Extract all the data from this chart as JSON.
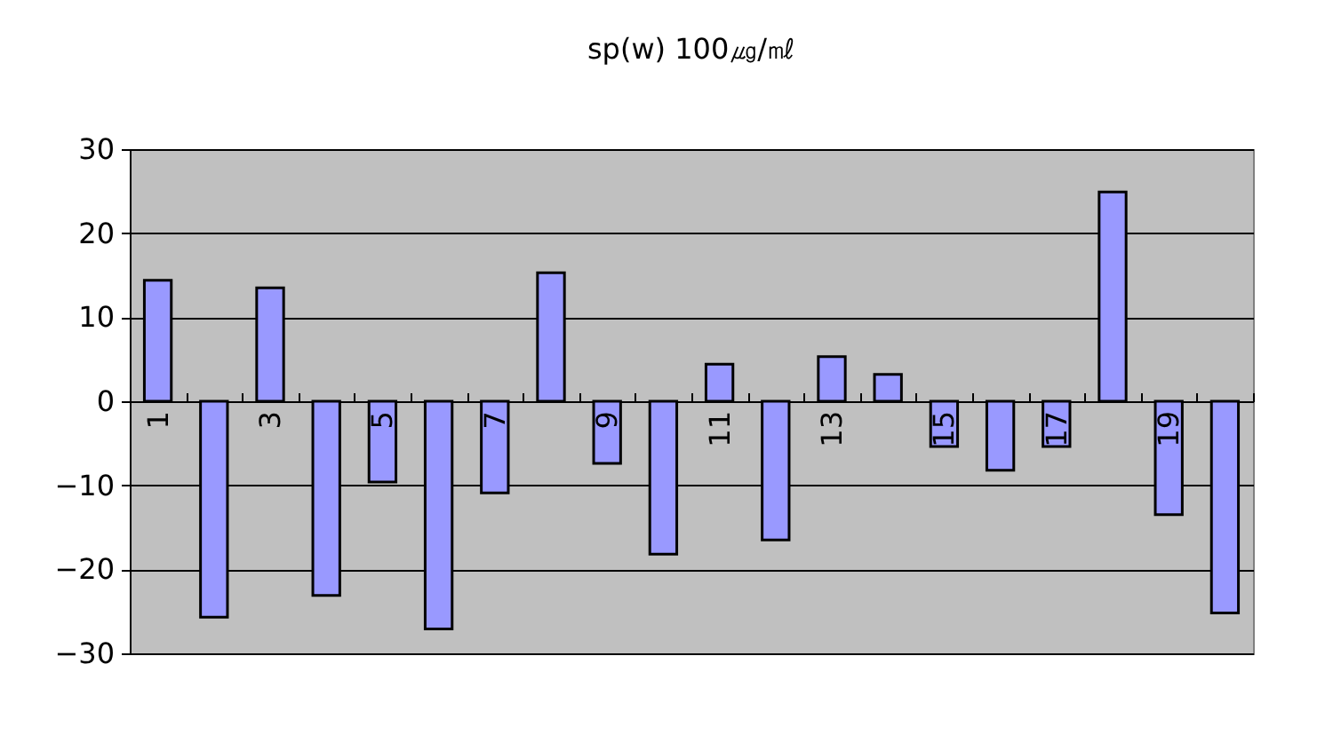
{
  "chart_data": {
    "type": "bar",
    "title": "sp(w) 100㎍/㎖",
    "categories": [
      "1",
      null,
      "3",
      null,
      "5",
      null,
      "7",
      null,
      "9",
      null,
      "11",
      null,
      "13",
      null,
      "15",
      null,
      "17",
      null,
      "19",
      null
    ],
    "values": [
      14.4,
      -25.7,
      13.5,
      -23.1,
      -9.6,
      -27.1,
      -10.9,
      15.3,
      -7.4,
      -18.2,
      4.4,
      -16.5,
      5.3,
      3.2,
      -5.4,
      -8.2,
      -5.4,
      24.9,
      -13.5,
      -25.2
    ],
    "color": "#9999ff",
    "ylim": [
      -30,
      30
    ],
    "yticks": [
      -30,
      -20,
      -10,
      0,
      10,
      20,
      30
    ],
    "grid": true
  }
}
